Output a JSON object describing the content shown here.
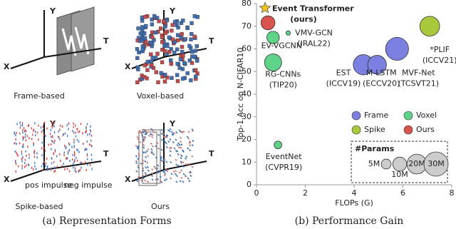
{
  "panel_a": {
    "caption": "(a) Representation Forms",
    "axis_labels": {
      "x": "X",
      "y": "Y",
      "t": "T"
    },
    "items": [
      "Frame-based",
      "Voxel-based",
      "Spike-based",
      "Ours"
    ],
    "impulse_legend": [
      "pos impulse",
      "neg impulse"
    ]
  },
  "panel_b_caption": "(b) Performance Gain",
  "chart_data": {
    "type": "bubble",
    "x_label": "FLOPs (G)",
    "y_label": "Top-1 Acc on N-CIFAR10",
    "xlim": [
      0,
      8
    ],
    "xticks": [
      0,
      2,
      4,
      6,
      8
    ],
    "ylim": [
      0,
      80
    ],
    "yticks": [
      0,
      10,
      20,
      30,
      40,
      50,
      60,
      70,
      80
    ],
    "grid": false,
    "highlight": {
      "labels": [
        "Event Transformer",
        "(ours)"
      ],
      "x": 0.35,
      "y": 78,
      "marker": "star",
      "color": "#f5c518"
    },
    "series": [
      {
        "name": "Frame",
        "color": "#7b7fe0",
        "x": [
          4.38,
          4.94,
          5.76
        ],
        "values": [
          53,
          53,
          60
        ],
        "sizes": [
          21,
          18,
          27
        ],
        "labels": [
          [
            "EST",
            "(ICCV19)"
          ],
          [
            "M-LSTM",
            "(ECCV20)"
          ],
          [
            "MVF-Net",
            "(TCSVT21)"
          ]
        ]
      },
      {
        "name": "Voxel",
        "color": "#5fd38a",
        "x": [
          0.68,
          1.3,
          0.68,
          0.88
        ],
        "values": [
          65,
          67,
          54,
          17.6
        ],
        "sizes": [
          8,
          1,
          15,
          3
        ],
        "labels": [
          [
            "EV-VGCNN"
          ],
          [
            "VMV-GCN",
            "(IRAL22)"
          ],
          [
            "RG-CNNs",
            "(TIP20)"
          ],
          [
            "EventNet",
            "(CVPR19)"
          ]
        ]
      },
      {
        "name": "Spike",
        "color": "#a9c93c",
        "x": [
          7.1
        ],
        "values": [
          70
        ],
        "sizes": [
          20
        ],
        "labels": [
          [
            "*PLIF",
            "(ICCV21)"
          ]
        ]
      },
      {
        "name": "Ours",
        "color": "#d9534f",
        "x": [
          0.47
        ],
        "values": [
          71.5
        ],
        "sizes": [
          10
        ],
        "labels": [
          []
        ]
      }
    ],
    "size_legend": {
      "title": "#Params",
      "sizes": [
        {
          "value": 5,
          "label": "5M"
        },
        {
          "value": 10,
          "label": "10M"
        },
        {
          "value": 20,
          "label": "20M"
        },
        {
          "value": 30,
          "label": "30M"
        }
      ]
    }
  }
}
